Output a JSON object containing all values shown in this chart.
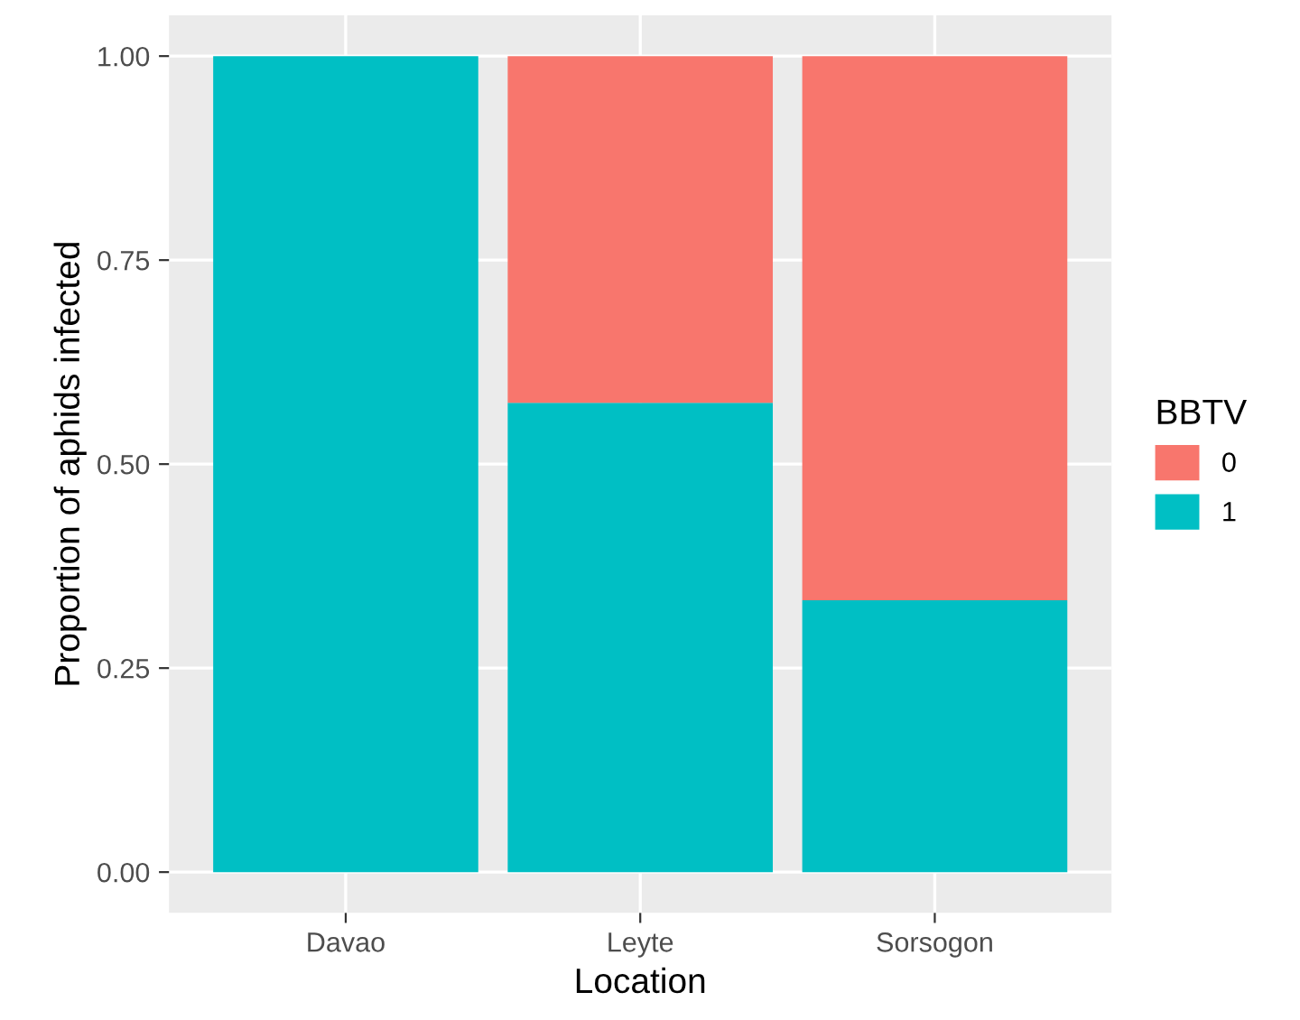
{
  "chart_data": {
    "type": "bar",
    "stacked": true,
    "xlabel": "Location",
    "ylabel": "Proportion of aphids infected",
    "legend_title": "BBTV",
    "categories": [
      "Davao",
      "Leyte",
      "Sorsogon"
    ],
    "series": [
      {
        "name": "1",
        "color": "#00bfc4",
        "values": [
          1.0,
          0.575,
          0.333
        ]
      },
      {
        "name": "0",
        "color": "#f8766d",
        "values": [
          0.0,
          0.425,
          0.667
        ]
      }
    ],
    "ylim": [
      -0.05,
      1.05
    ],
    "yticks": [
      {
        "value": 0,
        "label": "0.00"
      },
      {
        "value": 0.25,
        "label": "0.25"
      },
      {
        "value": 0.5,
        "label": "0.50"
      },
      {
        "value": 0.75,
        "label": "0.75"
      },
      {
        "value": 1,
        "label": "1.00"
      }
    ],
    "grid": true,
    "legend": "right"
  }
}
